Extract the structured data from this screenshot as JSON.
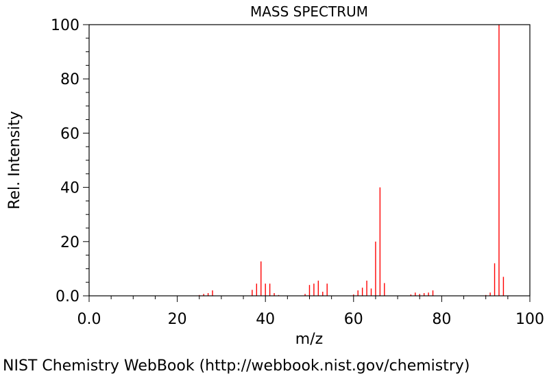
{
  "chart_data": {
    "type": "bar",
    "title": "MASS SPECTRUM",
    "xlabel": "m/z",
    "ylabel": "Rel. Intensity",
    "xlim": [
      0,
      100
    ],
    "ylim": [
      0,
      100
    ],
    "x_ticks": [
      "0.0",
      "20",
      "40",
      "60",
      "80",
      "100"
    ],
    "y_ticks": [
      "0.0",
      "20",
      "40",
      "60",
      "80",
      "100"
    ],
    "bar_color": "#ff0000",
    "grid": false,
    "peaks": [
      {
        "mz": 25,
        "intensity": 0.3
      },
      {
        "mz": 26,
        "intensity": 0.7
      },
      {
        "mz": 27,
        "intensity": 1.0
      },
      {
        "mz": 28,
        "intensity": 2.0
      },
      {
        "mz": 37,
        "intensity": 2.2
      },
      {
        "mz": 38,
        "intensity": 4.5
      },
      {
        "mz": 39,
        "intensity": 12.7
      },
      {
        "mz": 40,
        "intensity": 4.5
      },
      {
        "mz": 41,
        "intensity": 4.5
      },
      {
        "mz": 42,
        "intensity": 1.0
      },
      {
        "mz": 43,
        "intensity": 0.3
      },
      {
        "mz": 49,
        "intensity": 0.7
      },
      {
        "mz": 50,
        "intensity": 4.0
      },
      {
        "mz": 51,
        "intensity": 4.5
      },
      {
        "mz": 52,
        "intensity": 5.6
      },
      {
        "mz": 53,
        "intensity": 1.5
      },
      {
        "mz": 54,
        "intensity": 4.5
      },
      {
        "mz": 60,
        "intensity": 0.5
      },
      {
        "mz": 61,
        "intensity": 2.0
      },
      {
        "mz": 62,
        "intensity": 3.0
      },
      {
        "mz": 63,
        "intensity": 5.6
      },
      {
        "mz": 64,
        "intensity": 2.7
      },
      {
        "mz": 65,
        "intensity": 20.0
      },
      {
        "mz": 66,
        "intensity": 40.0
      },
      {
        "mz": 67,
        "intensity": 4.7
      },
      {
        "mz": 73,
        "intensity": 0.5
      },
      {
        "mz": 74,
        "intensity": 1.2
      },
      {
        "mz": 75,
        "intensity": 0.7
      },
      {
        "mz": 76,
        "intensity": 1.0
      },
      {
        "mz": 77,
        "intensity": 1.2
      },
      {
        "mz": 78,
        "intensity": 2.0
      },
      {
        "mz": 90,
        "intensity": 0.3
      },
      {
        "mz": 91,
        "intensity": 1.2
      },
      {
        "mz": 92,
        "intensity": 12.0
      },
      {
        "mz": 93,
        "intensity": 100.0
      },
      {
        "mz": 94,
        "intensity": 7.0
      }
    ]
  },
  "footer": {
    "text": "NIST Chemistry WebBook (http://webbook.nist.gov/chemistry)"
  }
}
